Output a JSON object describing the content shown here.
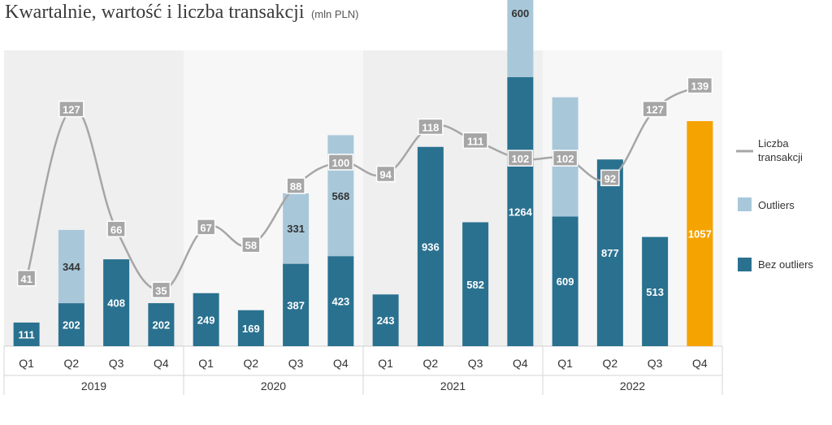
{
  "title": "Kwartalnie, wartość i liczba transakcji",
  "subtitle": "(mln PLN)",
  "colors": {
    "bez_outliers": "#2a7190",
    "outliers": "#a8c8da",
    "highlight": "#f5a300",
    "line": "#a6a6a6",
    "line_label_bg": "#a6a6a6",
    "panel_dark": "#efefef",
    "panel_light": "#f7f7f7"
  },
  "chart_data": {
    "type": "bar",
    "categories": [
      "Q1",
      "Q2",
      "Q3",
      "Q4",
      "Q1",
      "Q2",
      "Q3",
      "Q4",
      "Q1",
      "Q2",
      "Q3",
      "Q4",
      "Q1",
      "Q2",
      "Q3",
      "Q4"
    ],
    "groups": [
      {
        "label": "2019",
        "start": 0,
        "count": 4
      },
      {
        "label": "2020",
        "start": 4,
        "count": 4
      },
      {
        "label": "2021",
        "start": 8,
        "count": 4
      },
      {
        "label": "2022",
        "start": 12,
        "count": 4
      }
    ],
    "series": [
      {
        "name": "Bez outliers",
        "kind": "bar",
        "values": [
          111,
          202,
          408,
          202,
          249,
          169,
          387,
          423,
          243,
          936,
          582,
          1264,
          609,
          877,
          513,
          1057
        ]
      },
      {
        "name": "Outliers",
        "kind": "bar",
        "values": [
          null,
          344,
          null,
          null,
          null,
          null,
          331,
          568,
          null,
          null,
          null,
          600,
          560,
          null,
          null,
          null
        ]
      },
      {
        "name": "Liczba transakcji",
        "kind": "line",
        "values": [
          41,
          127,
          66,
          35,
          67,
          58,
          88,
          100,
          94,
          118,
          111,
          102,
          102,
          92,
          127,
          139
        ]
      }
    ],
    "highlight_index": 15,
    "legend_position": "right",
    "grid": false
  },
  "legend": [
    {
      "label_lines": [
        "Liczba",
        "transakcji"
      ],
      "kind": "line"
    },
    {
      "label_lines": [
        "Outliers"
      ],
      "kind": "box_outliers"
    },
    {
      "label_lines": [
        "Bez outliers"
      ],
      "kind": "box_bez"
    }
  ]
}
